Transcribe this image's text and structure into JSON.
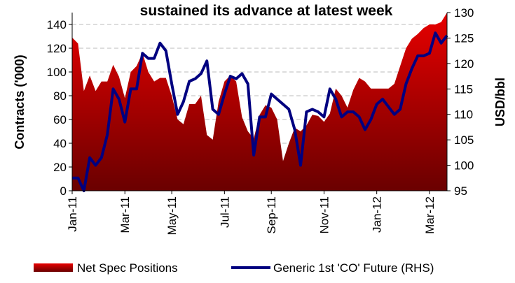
{
  "chart_data": {
    "type": "area-line",
    "title": "sustained its advance at latest week",
    "ylabel": "Contracts ('000)",
    "y2label": "USD/bbl",
    "categories": [
      "Jan-11",
      null,
      null,
      null,
      null,
      null,
      null,
      null,
      null,
      "Mar-11",
      null,
      null,
      null,
      null,
      null,
      null,
      null,
      "May-11",
      null,
      null,
      null,
      null,
      null,
      null,
      null,
      null,
      "Jul-11",
      null,
      null,
      null,
      null,
      null,
      null,
      null,
      "Sep-11",
      null,
      null,
      null,
      null,
      null,
      null,
      null,
      null,
      "Nov-11",
      null,
      null,
      null,
      null,
      null,
      null,
      null,
      null,
      "Jan-12",
      null,
      null,
      null,
      null,
      null,
      null,
      null,
      null,
      "Mar-12",
      null,
      null,
      null
    ],
    "series": [
      {
        "name": "Net Spec Positions",
        "type": "area",
        "color": "#e80000",
        "values": [
          129,
          124,
          84,
          97,
          84,
          92,
          92,
          106,
          96,
          78,
          100,
          105,
          116,
          100,
          92,
          95,
          95,
          80,
          60,
          56,
          73,
          73,
          80,
          47,
          43,
          75,
          92,
          97,
          92,
          62,
          50,
          44,
          64,
          72,
          70,
          60,
          25,
          40,
          53,
          50,
          55,
          64,
          63,
          58,
          65,
          86,
          80,
          70,
          85,
          95,
          92,
          86,
          86,
          86,
          86,
          90,
          105,
          120,
          128,
          132,
          137,
          140,
          140,
          142,
          150
        ]
      },
      {
        "name": "Generic 1st 'CO' Future (RHS)",
        "type": "line",
        "axis": "y2",
        "color": "#000080",
        "values": [
          97.5,
          97.5,
          95,
          101.5,
          100,
          101.5,
          106,
          115,
          113,
          108.5,
          115,
          115,
          122,
          121,
          121,
          124,
          122.5,
          116,
          110,
          112.5,
          116.5,
          117,
          118,
          120.5,
          111,
          110,
          114,
          117.5,
          117,
          118,
          116,
          102,
          109.5,
          109.5,
          114,
          113,
          112,
          111,
          107,
          100,
          110.5,
          111,
          110.5,
          109.5,
          115,
          113,
          109.5,
          110.5,
          110.5,
          109.5,
          107,
          109,
          112,
          113,
          111.5,
          110,
          111,
          116,
          119,
          121.5,
          121.5,
          122,
          126,
          124,
          125.5
        ]
      }
    ],
    "ylim": [
      0,
      150
    ],
    "yticks": [
      0,
      20,
      40,
      60,
      80,
      100,
      120,
      140
    ],
    "y2lim": [
      95,
      130
    ],
    "y2ticks": [
      95,
      100,
      105,
      110,
      115,
      120,
      125,
      130
    ],
    "grid": true,
    "legend": "bottom"
  }
}
